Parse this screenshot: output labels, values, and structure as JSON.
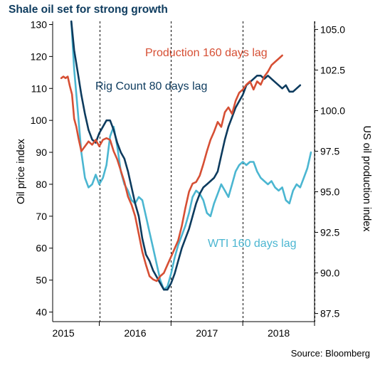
{
  "title": "Shale oil set for strong growth",
  "source": "Source: Bloomberg",
  "colors": {
    "wti": "#4bb6d1",
    "rig_count": "#0d3b5e",
    "production": "#d64f34",
    "title": "#0d3b5e",
    "axis": "#000000",
    "grid": "#000000"
  },
  "chart_data": {
    "type": "line",
    "title": "Shale oil set for strong growth",
    "grid": "vertical-dashed",
    "x_range": [
      2014.6,
      2018.25
    ],
    "x_ticks": [
      2015.25,
      2016.25,
      2017.25,
      2018.25
    ],
    "x_tick_labels": [
      "2015",
      "2016",
      "2017",
      "2018"
    ],
    "y_left": {
      "label": "Oil price index",
      "ylim": [
        37,
        131
      ],
      "ticks": [
        40,
        50,
        60,
        70,
        80,
        90,
        100,
        110,
        120,
        130
      ]
    },
    "y_right": {
      "label": "US oil production index",
      "ylim": [
        87.0,
        105.5
      ],
      "ticks": [
        "87.5",
        "90.0",
        "92.5",
        "95.0",
        "97.5",
        "100.0",
        "102.5",
        "105.0"
      ]
    },
    "annotations": [
      {
        "text": "Production 160 days lag",
        "series": "production"
      },
      {
        "text": "Rig Count 80 days lag",
        "series": "rig_count"
      },
      {
        "text": "WTI 160 days lag",
        "series": "wti"
      }
    ],
    "series": [
      {
        "key": "wti",
        "name": "WTI 160 days lag",
        "axis": "left",
        "x": [
          2014.86,
          2014.9,
          2014.95,
          2015.0,
          2015.05,
          2015.1,
          2015.15,
          2015.2,
          2015.25,
          2015.3,
          2015.35,
          2015.4,
          2015.45,
          2015.5,
          2015.55,
          2015.6,
          2015.65,
          2015.7,
          2015.75,
          2015.8,
          2015.85,
          2015.9,
          2015.95,
          2016.0,
          2016.05,
          2016.1,
          2016.15,
          2016.2,
          2016.25,
          2016.3,
          2016.35,
          2016.4,
          2016.45,
          2016.5,
          2016.55,
          2016.6,
          2016.65,
          2016.7,
          2016.75,
          2016.8,
          2016.85,
          2016.9,
          2016.95,
          2017.0,
          2017.05,
          2017.1,
          2017.15,
          2017.2,
          2017.25,
          2017.3,
          2017.35,
          2017.4,
          2017.45,
          2017.5,
          2017.55,
          2017.6,
          2017.65,
          2017.7,
          2017.75,
          2017.8,
          2017.85,
          2017.9,
          2017.95,
          2018.0,
          2018.05,
          2018.1,
          2018.15,
          2018.2
        ],
        "values": [
          131,
          116,
          103,
          90,
          82,
          79,
          80,
          83,
          80,
          82,
          86,
          95,
          98,
          92,
          84,
          80,
          78,
          75,
          74,
          76,
          75,
          70,
          65,
          60,
          55,
          50,
          47,
          48,
          52,
          57,
          61,
          64,
          67,
          71,
          76,
          78,
          77,
          75,
          71,
          70,
          74,
          77,
          80,
          78,
          76,
          80,
          84,
          86,
          87,
          86,
          87,
          87,
          84,
          82,
          81,
          80,
          81,
          79,
          78,
          79,
          75,
          74,
          78,
          80,
          79,
          82,
          85,
          90
        ]
      },
      {
        "key": "rig_count",
        "name": "Rig Count 80 days lag",
        "axis": "left",
        "x": [
          2014.86,
          2014.9,
          2014.95,
          2015.0,
          2015.05,
          2015.1,
          2015.15,
          2015.2,
          2015.25,
          2015.3,
          2015.35,
          2015.4,
          2015.45,
          2015.5,
          2015.55,
          2015.6,
          2015.65,
          2015.7,
          2015.75,
          2015.8,
          2015.85,
          2015.9,
          2015.95,
          2016.0,
          2016.05,
          2016.1,
          2016.15,
          2016.2,
          2016.25,
          2016.3,
          2016.35,
          2016.4,
          2016.45,
          2016.5,
          2016.55,
          2016.6,
          2016.65,
          2016.7,
          2016.75,
          2016.8,
          2016.85,
          2016.9,
          2016.95,
          2017.0,
          2017.05,
          2017.1,
          2017.15,
          2017.2,
          2017.25,
          2017.3,
          2017.35,
          2017.4,
          2017.45,
          2017.5,
          2017.55,
          2017.6,
          2017.65,
          2017.7,
          2017.75,
          2017.8,
          2017.85,
          2017.9,
          2017.95,
          2018.0,
          2018.05
        ],
        "values": [
          131,
          122,
          115,
          108,
          102,
          97,
          94,
          93,
          96,
          98,
          100,
          100,
          97,
          93,
          90,
          88,
          84,
          79,
          74,
          70,
          63,
          58,
          56,
          53,
          51,
          49,
          47,
          47,
          49,
          52,
          56,
          60,
          63,
          66,
          70,
          74,
          77,
          79,
          80,
          81,
          82,
          84,
          89,
          94,
          98,
          101,
          104,
          106,
          108,
          111,
          112,
          113,
          114,
          114,
          113,
          114,
          113,
          112,
          111,
          110,
          111,
          109,
          109,
          110,
          111
        ]
      },
      {
        "key": "production",
        "name": "Production 160 days lag",
        "axis": "right",
        "x": [
          2014.72,
          2014.75,
          2014.78,
          2014.81,
          2014.84,
          2014.87,
          2014.9,
          2014.93,
          2014.96,
          2015.0,
          2015.05,
          2015.1,
          2015.15,
          2015.2,
          2015.25,
          2015.3,
          2015.35,
          2015.4,
          2015.45,
          2015.5,
          2015.55,
          2015.6,
          2015.65,
          2015.7,
          2015.75,
          2015.8,
          2015.85,
          2015.9,
          2015.95,
          2016.0,
          2016.05,
          2016.1,
          2016.15,
          2016.2,
          2016.25,
          2016.3,
          2016.35,
          2016.4,
          2016.45,
          2016.5,
          2016.55,
          2016.6,
          2016.65,
          2016.7,
          2016.75,
          2016.8,
          2016.85,
          2016.9,
          2016.95,
          2017.0,
          2017.05,
          2017.1,
          2017.15,
          2017.2,
          2017.25,
          2017.3,
          2017.35,
          2017.4,
          2017.45,
          2017.5,
          2017.55,
          2017.6,
          2017.65,
          2017.7,
          2017.75,
          2017.8
        ],
        "values": [
          102.0,
          102.1,
          102.0,
          102.1,
          101.5,
          101.0,
          99.5,
          99.0,
          98.3,
          97.5,
          97.8,
          98.1,
          97.9,
          98.2,
          97.8,
          98.2,
          98.3,
          98.2,
          97.5,
          97.0,
          96.3,
          95.6,
          94.7,
          94.2,
          93.5,
          92.4,
          91.3,
          90.5,
          89.8,
          89.6,
          89.5,
          89.8,
          90.0,
          90.5,
          91.0,
          91.5,
          92.0,
          92.9,
          94.0,
          95.0,
          95.5,
          95.6,
          96.0,
          96.7,
          97.5,
          98.2,
          98.7,
          99.3,
          99.0,
          99.9,
          100.2,
          99.8,
          100.6,
          101.1,
          101.3,
          101.6,
          101.8,
          101.3,
          101.8,
          101.6,
          102.1,
          102.4,
          102.8,
          103.0,
          103.2,
          103.4
        ]
      }
    ]
  }
}
